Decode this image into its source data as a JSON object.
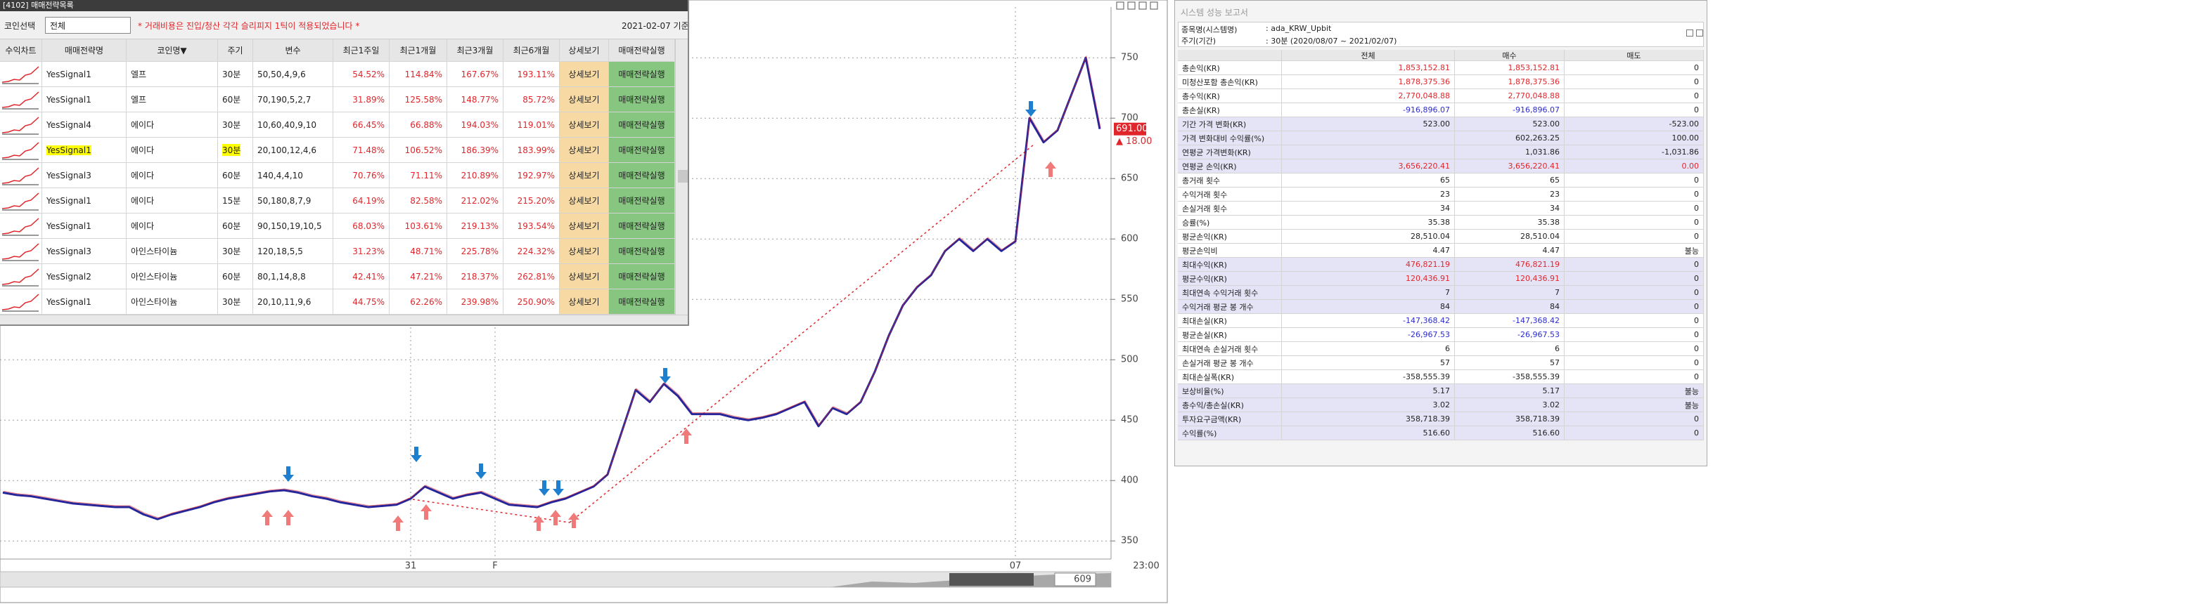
{
  "window_title": "[4102] 매매전략목록",
  "filter_label": "코인선택",
  "filter_value": "전체",
  "notice": "* 거래비용은 진입/청산 각각 슬리피지 1틱이 적용되었습니다 *",
  "as_of": "2021-02-07 기준",
  "strategy_table": {
    "columns": [
      "수익차트",
      "매매전략명",
      "코인명▼",
      "주기",
      "변수",
      "최근1주일",
      "최근1개월",
      "최근3개월",
      "최근6개월",
      "상세보기",
      "매매전략실행"
    ],
    "rows": [
      {
        "cells": [
          "YesSignal1",
          "엘프",
          "30분",
          "50,50,4,9,6",
          "54.52%",
          "114.84%",
          "167.67%",
          "193.11%",
          "상세보기",
          "매매전략실행"
        ]
      },
      {
        "cells": [
          "YesSignal1",
          "엘프",
          "60분",
          "70,190,5,2,7",
          "31.89%",
          "125.58%",
          "148.77%",
          "85.72%",
          "상세보기",
          "매매전략실행"
        ]
      },
      {
        "cells": [
          "YesSignal4",
          "에이다",
          "30분",
          "10,60,40,9,10",
          "66.45%",
          "66.88%",
          "194.03%",
          "119.01%",
          "상세보기",
          "매매전략실행"
        ]
      },
      {
        "cells": [
          "YesSignal1",
          "에이다",
          "30분",
          "20,100,12,4,6",
          "71.48%",
          "106.52%",
          "186.39%",
          "183.99%",
          "상세보기",
          "매매전략실행"
        ],
        "highlight": true
      },
      {
        "cells": [
          "YesSignal3",
          "에이다",
          "60분",
          "140,4,4,10",
          "70.76%",
          "71.11%",
          "210.89%",
          "192.97%",
          "상세보기",
          "매매전략실행"
        ]
      },
      {
        "cells": [
          "YesSignal1",
          "에이다",
          "15분",
          "50,180,8,7,9",
          "64.19%",
          "82.58%",
          "212.02%",
          "215.20%",
          "상세보기",
          "매매전략실행"
        ]
      },
      {
        "cells": [
          "YesSignal1",
          "에이다",
          "60분",
          "90,150,19,10,5",
          "68.03%",
          "103.61%",
          "219.13%",
          "193.54%",
          "상세보기",
          "매매전략실행"
        ]
      },
      {
        "cells": [
          "YesSignal3",
          "아인스타이늄",
          "30분",
          "120,18,5,5",
          "31.23%",
          "48.71%",
          "225.78%",
          "224.32%",
          "상세보기",
          "매매전략실행"
        ]
      },
      {
        "cells": [
          "YesSignal2",
          "아인스타이늄",
          "60분",
          "80,1,14,8,8",
          "42.41%",
          "47.21%",
          "218.37%",
          "262.81%",
          "상세보기",
          "매매전략실행"
        ]
      },
      {
        "cells": [
          "YesSignal1",
          "아인스타이늄",
          "30분",
          "20,10,11,9,6",
          "44.75%",
          "62.26%",
          "239.98%",
          "250.90%",
          "상세보기",
          "매매전략실행"
        ]
      }
    ]
  },
  "chart_data": {
    "type": "line",
    "categories": [
      null,
      null,
      null,
      null,
      null,
      null,
      null,
      null,
      null,
      null,
      null,
      null,
      null,
      null,
      null,
      null,
      null,
      null,
      null,
      null,
      null,
      null,
      null,
      null,
      null,
      null,
      null,
      null,
      null,
      "31",
      null,
      null,
      null,
      null,
      null,
      "F",
      null,
      null,
      null,
      null,
      null,
      null,
      null,
      null,
      null,
      null,
      null,
      null,
      null,
      null,
      null,
      null,
      null,
      null,
      null,
      null,
      null,
      null,
      null,
      null,
      null,
      null,
      null,
      null,
      null,
      null,
      null,
      null,
      null,
      null,
      null,
      null,
      "07",
      null,
      null,
      null,
      null,
      null,
      null
    ],
    "values": [
      390,
      388,
      387,
      385,
      383,
      381,
      380,
      379,
      378,
      378,
      372,
      368,
      372,
      375,
      378,
      382,
      385,
      387,
      389,
      391,
      392,
      390,
      387,
      385,
      382,
      380,
      378,
      379,
      380,
      385,
      395,
      390,
      385,
      388,
      390,
      385,
      380,
      379,
      378,
      382,
      385,
      390,
      395,
      405,
      440,
      475,
      465,
      480,
      470,
      455,
      455,
      455,
      452,
      450,
      452,
      455,
      460,
      465,
      445,
      460,
      455,
      465,
      490,
      520,
      545,
      560,
      570,
      590,
      600,
      590,
      600,
      590,
      598,
      700,
      680,
      690,
      720,
      750,
      691
    ],
    "color": "#26259a",
    "ylim": [
      335,
      792
    ],
    "yticks": [
      350,
      400,
      450,
      500,
      550,
      600,
      650,
      700,
      750
    ],
    "grid": true,
    "last_value_label": "691.00",
    "change_label": "▲ 18.00",
    "time_label": "23:00"
  },
  "scroll_value": "609",
  "report": {
    "title": "시스템 성능 보고서",
    "symbol_label": "종목명(시스템명)",
    "symbol": ":  ada_KRW_Upbit",
    "period_label": "주기(기간)",
    "period": ":  30분 (2020/08/07 ~ 2021/02/07)",
    "columns": [
      "전체",
      "매수",
      "매도"
    ],
    "rows": [
      {
        "label": "총손익(KR)",
        "values": [
          "1,853,152.81",
          "1,853,152.81",
          "0"
        ],
        "colored": true
      },
      {
        "label": "미청산포함 총손익(KR)",
        "values": [
          "1,878,375.36",
          "1,878,375.36",
          "0"
        ],
        "colored": true
      },
      {
        "label": "총수익(KR)",
        "values": [
          "2,770,048.88",
          "2,770,048.88",
          "0"
        ],
        "colored": true
      },
      {
        "label": "총손실(KR)",
        "values": [
          "-916,896.07",
          "-916,896.07",
          "0"
        ],
        "colored": true
      },
      {
        "label": "기간 가격 변화(KR)",
        "values": [
          "523.00",
          "523.00",
          "-523.00"
        ],
        "shaded": true
      },
      {
        "label": "가격 변화대비 수익률(%)",
        "values": [
          null,
          "602,263.25",
          "100.00"
        ],
        "shaded": true
      },
      {
        "label": "연평균 가격변화(KR)",
        "values": [
          null,
          "1,031.86",
          "-1,031.86"
        ],
        "shaded": true
      },
      {
        "label": "연평균 손익(KR)",
        "values": [
          "3,656,220.41",
          "3,656,220.41",
          "0.00"
        ],
        "shaded": true,
        "colored": true
      },
      {
        "label": "총거래 횟수",
        "values": [
          "65",
          "65",
          "0"
        ]
      },
      {
        "label": "수익거래 횟수",
        "values": [
          "23",
          "23",
          "0"
        ]
      },
      {
        "label": "손실거래 횟수",
        "values": [
          "34",
          "34",
          "0"
        ]
      },
      {
        "label": "승률(%)",
        "values": [
          "35.38",
          "35.38",
          "0"
        ]
      },
      {
        "label": "평균손익(KR)",
        "values": [
          "28,510.04",
          "28,510.04",
          "0"
        ]
      },
      {
        "label": "평균손익비",
        "values": [
          "4.47",
          "4.47",
          "불능"
        ]
      },
      {
        "label": "최대수익(KR)",
        "values": [
          "476,821.19",
          "476,821.19",
          "0"
        ],
        "shaded": true,
        "colored": true
      },
      {
        "label": "평균수익(KR)",
        "values": [
          "120,436.91",
          "120,436.91",
          "0"
        ],
        "shaded": true,
        "colored": true
      },
      {
        "label": "최대연속 수익거래 횟수",
        "values": [
          "7",
          "7",
          "0"
        ],
        "shaded": true
      },
      {
        "label": "수익거래 평균 봉 개수",
        "values": [
          "84",
          "84",
          "0"
        ],
        "shaded": true
      },
      {
        "label": "최대손실(KR)",
        "values": [
          "-147,368.42",
          "-147,368.42",
          "0"
        ],
        "colored": true
      },
      {
        "label": "평균손실(KR)",
        "values": [
          "-26,967.53",
          "-26,967.53",
          "0"
        ],
        "colored": true
      },
      {
        "label": "최대연속 손실거래 횟수",
        "values": [
          "6",
          "6",
          "0"
        ]
      },
      {
        "label": "손실거래 평균 봉 개수",
        "values": [
          "57",
          "57",
          "0"
        ]
      },
      {
        "label": "최대손실폭(KR)",
        "values": [
          "-358,555.39",
          "-358,555.39",
          "0"
        ]
      },
      {
        "label": "보상비율(%)",
        "values": [
          "5.17",
          "5.17",
          "불능"
        ],
        "shaded": true
      },
      {
        "label": "총수익/총손실(KR)",
        "values": [
          "3.02",
          "3.02",
          "불능"
        ],
        "shaded": true
      },
      {
        "label": "투자요구금액(KR)",
        "values": [
          "358,718.39",
          "358,718.39",
          "0"
        ],
        "shaded": true
      },
      {
        "label": "수익률(%)",
        "values": [
          "516.60",
          "516.60",
          "0"
        ],
        "shaded": true
      }
    ]
  }
}
